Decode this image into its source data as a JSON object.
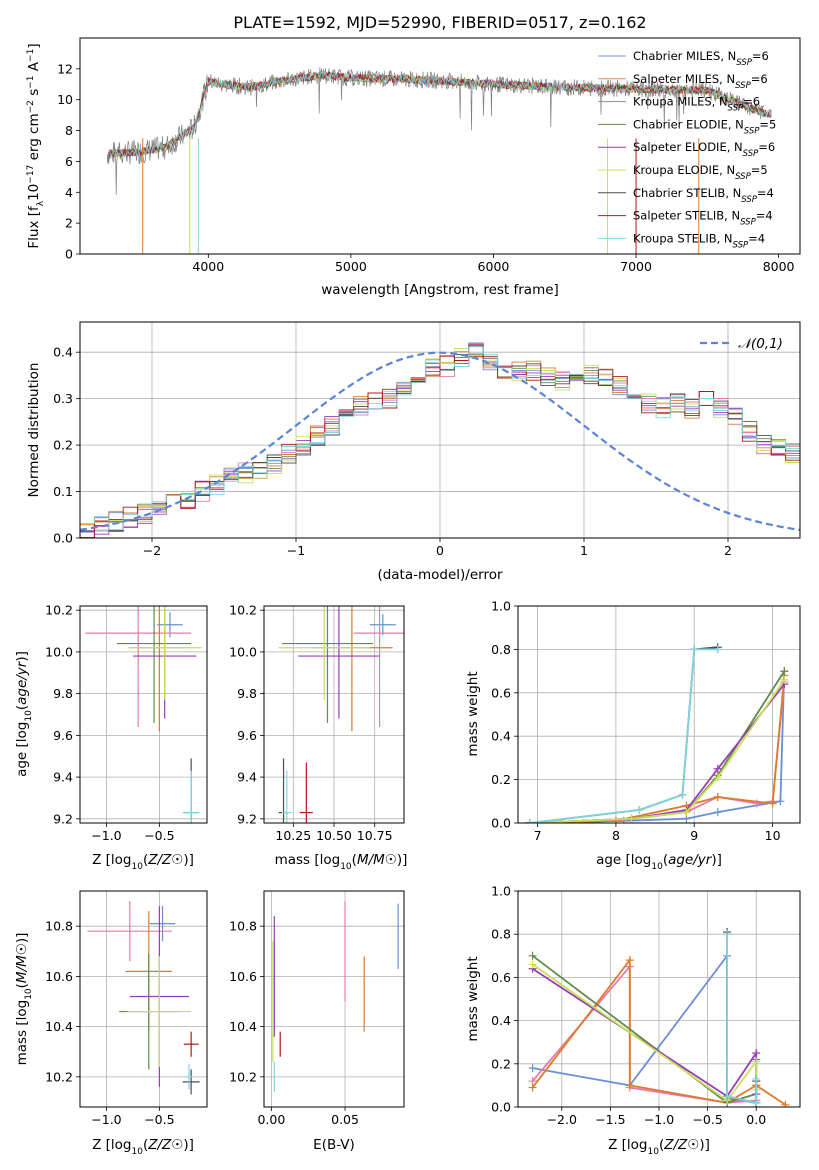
{
  "chart_data": [
    {
      "type": "line",
      "title": "PLATE=1592, MJD=52990, FIBERID=0517, z=0.162",
      "xlabel": "wavelength [Angstrom, rest frame]",
      "ylabel": "Flux [f_λ10^-17 erg cm^-2 s^-1 A^-1]",
      "xlim": [
        3100,
        8150
      ],
      "ylim": [
        0,
        14
      ],
      "xticks": [
        4000,
        5000,
        6000,
        7000,
        8000
      ],
      "yticks": [
        0,
        2,
        4,
        6,
        8,
        10,
        12
      ],
      "legend_position": "right",
      "data_series": {
        "name": "",
        "color": "#808080",
        "x": [
          3300,
          3500,
          3700,
          3900,
          4000,
          4100,
          4300,
          4500,
          4800,
          5000,
          5500,
          6000,
          6500,
          7000,
          7500,
          7900
        ],
        "y": [
          6.5,
          6.6,
          6.9,
          8.2,
          11.2,
          11.0,
          10.8,
          11.2,
          11.6,
          11.4,
          11.3,
          11.0,
          10.8,
          10.7,
          10.6,
          9.1
        ]
      },
      "series": [
        {
          "name": "Chabrier MILES, N_SSP=6",
          "color": "#6a8fd6"
        },
        {
          "name": "Salpeter MILES, N_SSP=6",
          "color": "#e8904a"
        },
        {
          "name": "Kroupa MILES, N_SSP=6",
          "color": "#de7a2b"
        },
        {
          "name": "Chabrier ELODIE, N_SSP=5",
          "color": "#5e8c4a"
        },
        {
          "name": "Salpeter ELODIE, N_SSP=6",
          "color": "#9b3db5"
        },
        {
          "name": "Kroupa ELODIE, N_SSP=5",
          "color": "#c8e05a"
        },
        {
          "name": "Chabrier STELIB, N_SSP=4",
          "color": "#4d4d4d"
        },
        {
          "name": "Salpeter STELIB, N_SSP=4",
          "color": "#b01818"
        },
        {
          "name": "Kroupa STELIB, N_SSP=4",
          "color": "#80d6e0"
        }
      ]
    },
    {
      "type": "line",
      "xlabel": "(data-model)/error",
      "ylabel": "Normed distribution",
      "xlim": [
        -2.5,
        2.5
      ],
      "ylim": [
        0,
        0.465
      ],
      "xticks": [
        -2,
        -1,
        0,
        1,
        2
      ],
      "yticks": [
        0.0,
        0.1,
        0.2,
        0.3,
        0.4
      ],
      "grid": true,
      "legend_position": "top-right",
      "legend_label": "𝒩(0,1)",
      "gauss": {
        "mu": 0,
        "sigma": 1,
        "color": "#5b85d4"
      },
      "hist_bins": {
        "start": -2.5,
        "width": 0.1
      },
      "hist_base": [
        0.02,
        0.028,
        0.035,
        0.045,
        0.054,
        0.062,
        0.073,
        0.085,
        0.1,
        0.115,
        0.13,
        0.14,
        0.145,
        0.16,
        0.18,
        0.2,
        0.22,
        0.24,
        0.26,
        0.285,
        0.29,
        0.3,
        0.32,
        0.34,
        0.37,
        0.37,
        0.39,
        0.41,
        0.38,
        0.36,
        0.36,
        0.36,
        0.35,
        0.34,
        0.36,
        0.35,
        0.35,
        0.33,
        0.31,
        0.29,
        0.28,
        0.29,
        0.28,
        0.3,
        0.28,
        0.26,
        0.23,
        0.2,
        0.195,
        0.18,
        0.16,
        0.15,
        0.14,
        0.125,
        0.11,
        0.098,
        0.09,
        0.08,
        0.07,
        0.06,
        0.058,
        0.052,
        0.05,
        0.045,
        0.042,
        0.04,
        0.038,
        0.035,
        0.032,
        0.03
      ]
    },
    {
      "type": "scatter",
      "xlabel": "Z [log10(Z/Z☉)]",
      "ylabel": "age  [log10(age/yr)]",
      "xlim": [
        -1.25,
        -0.05
      ],
      "ylim": [
        9.18,
        10.22
      ],
      "xticks": [
        -1.0,
        -0.5
      ],
      "xticklabels": [
        "−1.0",
        "−0.5"
      ],
      "yticks": [
        9.2,
        9.4,
        9.6,
        9.8,
        10.0,
        10.2
      ],
      "grid": true,
      "points": [
        {
          "x": -0.4,
          "y": 10.13,
          "xerr": 0.12,
          "yerr": 0.06,
          "color": "#6a8fd6"
        },
        {
          "x": -0.7,
          "y": 10.09,
          "xerr": 0.5,
          "yerr": 0.45,
          "color": "#e87aac"
        },
        {
          "x": -0.5,
          "y": 10.02,
          "xerr": 0.25,
          "yerr": 0.4,
          "color": "#de7a2b"
        },
        {
          "x": -0.55,
          "y": 10.04,
          "xerr": 0.35,
          "yerr": 0.38,
          "color": "#5e8c4a"
        },
        {
          "x": -0.45,
          "y": 9.98,
          "xerr": 0.3,
          "yerr": 0.3,
          "color": "#9b3db5"
        },
        {
          "x": -0.45,
          "y": 10.02,
          "xerr": 0.35,
          "yerr": 0.25,
          "color": "#c8e05a"
        },
        {
          "x": -0.2,
          "y": 9.23,
          "xerr": 0.07,
          "yerr": 0.26,
          "color": "#4d4d4d"
        },
        {
          "x": -0.2,
          "y": 9.23,
          "xerr": 0.08,
          "yerr": 0.2,
          "color": "#80d6e0"
        }
      ]
    },
    {
      "type": "scatter",
      "xlabel": "mass [log10(M/M☉)]",
      "ylabel": "",
      "xlim": [
        10.07,
        10.93
      ],
      "ylim": [
        9.18,
        10.22
      ],
      "xticks": [
        10.25,
        10.5,
        10.75
      ],
      "xticklabels": [
        "10.25",
        "10.50",
        "10.75"
      ],
      "yticks": [
        9.2,
        9.4,
        9.6,
        9.8,
        10.0,
        10.2
      ],
      "grid": true,
      "points": [
        {
          "x": 10.8,
          "y": 10.13,
          "xerr": 0.08,
          "yerr": 0.05,
          "color": "#6a8fd6"
        },
        {
          "x": 10.78,
          "y": 10.09,
          "xerr": 0.16,
          "yerr": 0.45,
          "color": "#e87aac"
        },
        {
          "x": 10.61,
          "y": 10.02,
          "xerr": 0.25,
          "yerr": 0.4,
          "color": "#de7a2b"
        },
        {
          "x": 10.46,
          "y": 10.04,
          "xerr": 0.28,
          "yerr": 0.38,
          "color": "#5e8c4a"
        },
        {
          "x": 10.53,
          "y": 9.98,
          "xerr": 0.25,
          "yerr": 0.3,
          "color": "#9b3db5"
        },
        {
          "x": 10.44,
          "y": 10.02,
          "xerr": 0.28,
          "yerr": 0.25,
          "color": "#c8e05a"
        },
        {
          "x": 10.19,
          "y": 9.23,
          "xerr": 0.03,
          "yerr": 0.26,
          "color": "#4d4d4d"
        },
        {
          "x": 10.33,
          "y": 9.23,
          "xerr": 0.04,
          "yerr": 0.24,
          "color": "#b01818"
        },
        {
          "x": 10.21,
          "y": 9.23,
          "xerr": 0.03,
          "yerr": 0.2,
          "color": "#80d6e0"
        }
      ]
    },
    {
      "type": "line",
      "xlabel": "age  [log10(age/yr)]",
      "ylabel": "mass weight",
      "xlim": [
        6.75,
        10.35
      ],
      "ylim": [
        0,
        1
      ],
      "xticks": [
        7,
        8,
        9,
        10
      ],
      "yticks": [
        0.0,
        0.2,
        0.4,
        0.6,
        0.8,
        1.0
      ],
      "grid": true,
      "series": [
        {
          "color": "#6a8fd6",
          "x": [
            6.9,
            8.1,
            8.9,
            9.3,
            10.1,
            10.15
          ],
          "y": [
            0.0,
            0.01,
            0.02,
            0.05,
            0.1,
            0.7
          ]
        },
        {
          "color": "#e87aac",
          "x": [
            6.9,
            8.0,
            8.9,
            9.3,
            9.8,
            10.0,
            10.15
          ],
          "y": [
            0.0,
            0.01,
            0.05,
            0.12,
            0.09,
            0.1,
            0.65
          ]
        },
        {
          "color": "#de7a2b",
          "x": [
            6.9,
            8.0,
            8.9,
            9.3,
            10.0,
            10.15
          ],
          "y": [
            0.0,
            0.01,
            0.08,
            0.12,
            0.09,
            0.68
          ]
        },
        {
          "color": "#5e8c4a",
          "x": [
            6.9,
            8.2,
            8.9,
            9.3,
            10.15
          ],
          "y": [
            0.0,
            0.02,
            0.05,
            0.22,
            0.7
          ]
        },
        {
          "color": "#9b3db5",
          "x": [
            6.9,
            8.2,
            8.9,
            9.3,
            10.15
          ],
          "y": [
            0.0,
            0.02,
            0.06,
            0.25,
            0.64
          ]
        },
        {
          "color": "#c8e05a",
          "x": [
            6.9,
            8.2,
            8.9,
            9.3,
            10.15
          ],
          "y": [
            0.0,
            0.02,
            0.05,
            0.21,
            0.66
          ]
        },
        {
          "color": "#4d4d4d",
          "x": [
            6.9,
            8.3,
            8.85,
            9.0,
            9.3
          ],
          "y": [
            0.0,
            0.06,
            0.13,
            0.8,
            0.81
          ]
        },
        {
          "color": "#80d6e0",
          "x": [
            6.9,
            8.3,
            8.85,
            9.0,
            9.3
          ],
          "y": [
            0.0,
            0.06,
            0.13,
            0.8,
            0.8
          ]
        }
      ]
    },
    {
      "type": "scatter",
      "xlabel": "Z [log10(Z/Z☉)]",
      "ylabel": "mass [log10(M/M☉)]",
      "xlim": [
        -1.25,
        -0.05
      ],
      "ylim": [
        10.08,
        10.94
      ],
      "xticks": [
        -1.0,
        -0.5
      ],
      "xticklabels": [
        "−1.0",
        "−0.5"
      ],
      "yticks": [
        10.2,
        10.4,
        10.6,
        10.8
      ],
      "grid": true,
      "points": [
        {
          "x": -0.47,
          "y": 10.81,
          "xerr": 0.12,
          "yerr": 0.07,
          "color": "#6a8fd6"
        },
        {
          "x": -0.78,
          "y": 10.78,
          "xerr": 0.4,
          "yerr": 0.12,
          "color": "#e87aac"
        },
        {
          "x": -0.6,
          "y": 10.62,
          "xerr": 0.22,
          "yerr": 0.24,
          "color": "#de7a2b"
        },
        {
          "x": -0.6,
          "y": 10.46,
          "xerr": 0.28,
          "yerr": 0.23,
          "color": "#5e8c4a"
        },
        {
          "x": -0.5,
          "y": 10.52,
          "xerr": 0.28,
          "yerr": 0.36,
          "color": "#9b3db5"
        },
        {
          "x": -0.5,
          "y": 10.46,
          "xerr": 0.3,
          "yerr": 0.22,
          "color": "#c8e05a"
        },
        {
          "x": -0.2,
          "y": 10.18,
          "xerr": 0.08,
          "yerr": 0.05,
          "color": "#4d4d4d"
        },
        {
          "x": -0.2,
          "y": 10.33,
          "xerr": 0.07,
          "yerr": 0.05,
          "color": "#b01818"
        },
        {
          "x": -0.22,
          "y": 10.2,
          "xerr": 0.04,
          "yerr": 0.05,
          "color": "#80d6e0"
        }
      ]
    },
    {
      "type": "scatter",
      "xlabel": "E(B-V)",
      "ylabel": "",
      "xlim": [
        -0.005,
        0.09
      ],
      "ylim": [
        10.08,
        10.94
      ],
      "xticks": [
        0.0,
        0.05
      ],
      "xticklabels": [
        "0.00",
        "0.05"
      ],
      "yticks": [
        10.2,
        10.4,
        10.6,
        10.8
      ],
      "grid": true,
      "points": [
        {
          "x": 0.086,
          "y": 10.76,
          "xerr": 0,
          "yerr": 0.13,
          "color": "#6a8fd6"
        },
        {
          "x": 0.05,
          "y": 10.7,
          "xerr": 0,
          "yerr": 0.2,
          "color": "#e87aac"
        },
        {
          "x": 0.063,
          "y": 10.53,
          "xerr": 0,
          "yerr": 0.15,
          "color": "#de7a2b"
        },
        {
          "x": 0.002,
          "y": 10.6,
          "xerr": 0,
          "yerr": 0.24,
          "color": "#9b3db5"
        },
        {
          "x": 0.001,
          "y": 10.5,
          "xerr": 0,
          "yerr": 0.24,
          "color": "#c8e05a"
        },
        {
          "x": 0.006,
          "y": 10.33,
          "xerr": 0,
          "yerr": 0.05,
          "color": "#b01818"
        },
        {
          "x": 0.002,
          "y": 10.2,
          "xerr": 0,
          "yerr": 0.06,
          "color": "#80d6e0"
        }
      ]
    },
    {
      "type": "line",
      "xlabel": "Z [log10(Z/Z☉)]",
      "ylabel": "mass weight",
      "xlim": [
        -2.45,
        0.45
      ],
      "ylim": [
        0,
        1
      ],
      "xticks": [
        -2.0,
        -1.5,
        -1.0,
        -0.5,
        0.0
      ],
      "xticklabels": [
        "−2.0",
        "−1.5",
        "−1.0",
        "−0.5",
        "0.0"
      ],
      "yticks": [
        0.0,
        0.2,
        0.4,
        0.6,
        0.8,
        1.0
      ],
      "grid": true,
      "series": [
        {
          "color": "#6a8fd6",
          "x": [
            -2.3,
            -1.3,
            -0.3,
            -0.3,
            0.0,
            0.0
          ],
          "y": [
            0.18,
            0.1,
            0.7,
            0.04,
            0.02,
            0.0
          ]
        },
        {
          "color": "#e87aac",
          "x": [
            -2.3,
            -1.3,
            -1.3,
            -0.3,
            0.0,
            0.0
          ],
          "y": [
            0.12,
            0.65,
            0.09,
            0.02,
            0.03,
            0.1
          ]
        },
        {
          "color": "#de7a2b",
          "x": [
            -2.3,
            -1.3,
            -1.3,
            -0.3,
            0.0,
            0.3
          ],
          "y": [
            0.09,
            0.68,
            0.1,
            0.02,
            0.1,
            0.01
          ]
        },
        {
          "color": "#5e8c4a",
          "x": [
            -2.3,
            -0.3,
            0.0,
            0.0
          ],
          "y": [
            0.7,
            0.02,
            0.06,
            0.22
          ]
        },
        {
          "color": "#9b3db5",
          "x": [
            -2.3,
            -0.3,
            0.0,
            0.0
          ],
          "y": [
            0.64,
            0.05,
            0.25,
            0.06
          ]
        },
        {
          "color": "#c8e05a",
          "x": [
            -2.3,
            -0.3,
            0.0,
            0.0
          ],
          "y": [
            0.66,
            0.03,
            0.21,
            0.08
          ]
        },
        {
          "color": "#4d4d4d",
          "x": [
            -0.3,
            -0.3,
            0.0,
            0.0
          ],
          "y": [
            0.81,
            0.05,
            0.02,
            0.12
          ]
        },
        {
          "color": "#80d6e0",
          "x": [
            -0.3,
            -0.3,
            0.0,
            0.0
          ],
          "y": [
            0.8,
            0.05,
            0.02,
            0.13
          ]
        }
      ]
    }
  ]
}
